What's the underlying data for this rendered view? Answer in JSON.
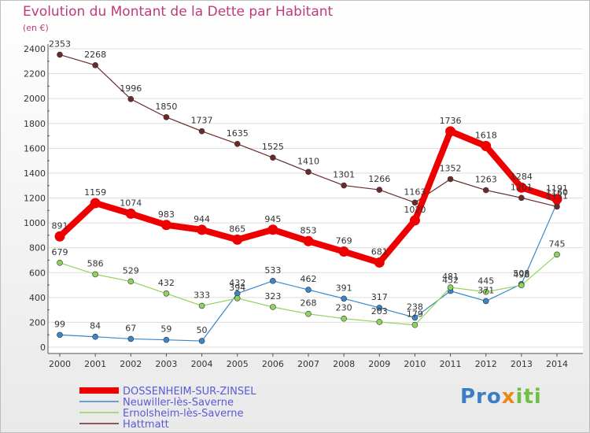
{
  "title": "Evolution du Montant de la Dette par Habitant",
  "unit": "(en €)",
  "logo": {
    "part1": "Pro",
    "part2": "x",
    "part3": "iti"
  },
  "chart_data": {
    "type": "line",
    "title": "Evolution du Montant de la Dette par Habitant",
    "ylabel": "(en €)",
    "xlabel": "",
    "ylim": [
      0,
      2400
    ],
    "y_ticks": [
      0,
      200,
      400,
      600,
      800,
      1000,
      1200,
      1400,
      1600,
      1800,
      2000,
      2200,
      2400
    ],
    "grid": "horizontal",
    "legend_position": "bottom-left",
    "x": [
      "2000",
      "2001",
      "2002",
      "2003",
      "2004",
      "2005",
      "2006",
      "2007",
      "2008",
      "2009",
      "2010",
      "2011",
      "2012",
      "2013",
      "2014"
    ],
    "series": [
      {
        "name": "DOSSENHEIM-SUR-ZINSEL",
        "color": "#ee0000",
        "emphasis": true,
        "values": [
          891,
          1159,
          1074,
          983,
          944,
          865,
          945,
          853,
          769,
          681,
          1020,
          1736,
          1618,
          1284,
          1191
        ]
      },
      {
        "name": "Neuwiller-lès-Saverne",
        "color": "#3a86c8",
        "values": [
          99,
          84,
          67,
          59,
          50,
          432,
          533,
          462,
          391,
          317,
          238,
          452,
          371,
          508,
          1160
        ]
      },
      {
        "name": "Ernolsheim-lès-Saverne",
        "color": "#8fd45a",
        "values": [
          679,
          586,
          529,
          432,
          333,
          394,
          323,
          268,
          230,
          203,
          179,
          481,
          445,
          498,
          745
        ]
      },
      {
        "name": "Hattmatt",
        "color": "#6b2a2a",
        "values": [
          2353,
          2268,
          1996,
          1850,
          1737,
          1635,
          1525,
          1410,
          1301,
          1266,
          1163,
          1352,
          1263,
          1201,
          1131
        ]
      }
    ]
  }
}
